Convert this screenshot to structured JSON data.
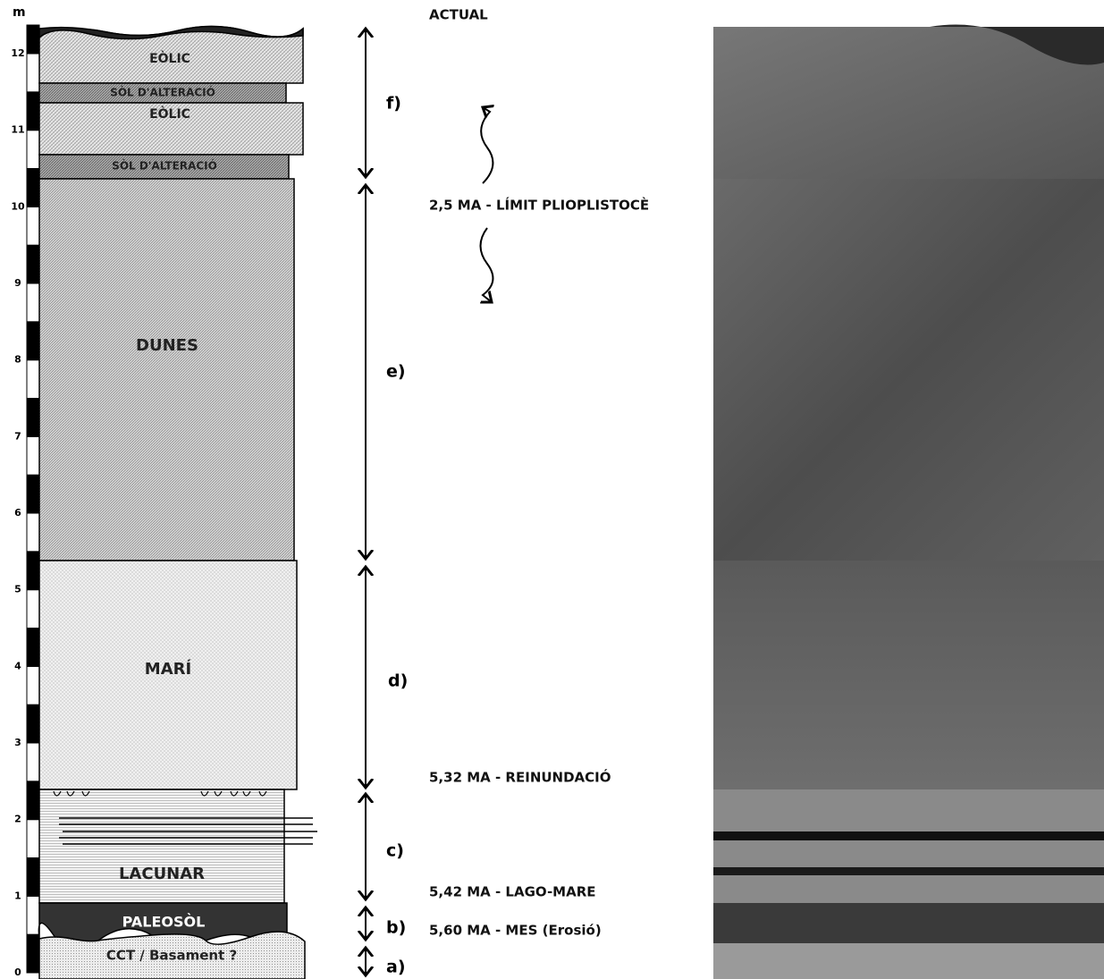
{
  "scale": {
    "unit": "m",
    "ticks": [
      0,
      1,
      2,
      3,
      4,
      5,
      6,
      7,
      8,
      9,
      10,
      11,
      12
    ]
  },
  "layers": [
    "EÒLIC",
    "SÒL D'ALTERACIÓ",
    "EÒLIC",
    "SÒL D'ALTERACIÓ",
    "DUNES",
    "MARÍ",
    "LACUNAR",
    "PALEOSÒL",
    "CCT / Basament ?"
  ],
  "units": [
    "f)",
    "e)",
    "d)",
    "c)",
    "b)",
    "a)"
  ],
  "events": [
    "ACTUAL",
    "2,5 MA - LÍMIT PLIOPLISTOCÈ",
    "5,32 MA - REINUNDACIÓ",
    "5,42 MA - LAGO-MARE",
    "5,60 MA - MES (Erosió)"
  ]
}
